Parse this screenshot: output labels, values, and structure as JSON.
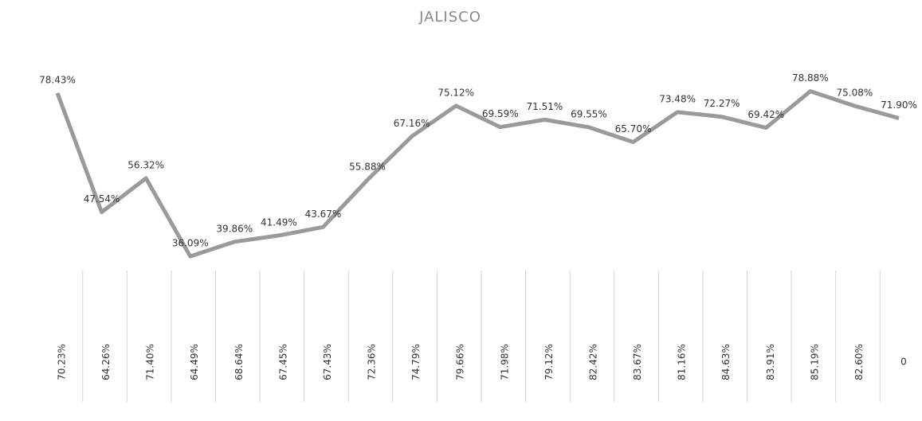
{
  "chart_data": {
    "type": "line",
    "title": "JALISCO",
    "categories": [
      null,
      null,
      null,
      null,
      null,
      null,
      null,
      null,
      null,
      null,
      null,
      null,
      null,
      null,
      null,
      null,
      null,
      null,
      null,
      null
    ],
    "ylim": [
      0,
      85
    ],
    "series": [
      {
        "color": "#9a9a9a",
        "values": [
          78.43,
          47.54,
          56.32,
          36.09,
          39.86,
          41.49,
          43.67,
          55.88,
          67.16,
          75.12,
          69.59,
          71.51,
          69.55,
          65.7,
          73.48,
          72.27,
          69.42,
          78.88,
          75.08,
          71.9
        ],
        "value_labels": [
          "78.43%",
          "47.54%",
          "56.32%",
          "36.09%",
          "39.86%",
          "41.49%",
          "43.67%",
          "55.88%",
          "67.16%",
          "75.12%",
          "69.59%",
          "71.51%",
          "69.55%",
          "65.70%",
          "73.48%",
          "72.27%",
          "69.42%",
          "78.88%",
          "75.08%",
          "71.90%"
        ]
      }
    ],
    "table_row": {
      "values": [
        70.23,
        64.26,
        71.4,
        64.49,
        68.64,
        67.45,
        67.43,
        72.36,
        74.79,
        79.66,
        71.98,
        79.12,
        82.42,
        83.67,
        81.16,
        84.63,
        83.91,
        85.19,
        82.6,
        0
      ],
      "value_labels": [
        "70.23%",
        "64.26%",
        "71.40%",
        "64.49%",
        "68.64%",
        "67.45%",
        "67.43%",
        "72.36%",
        "74.79%",
        "79.66%",
        "71.98%",
        "79.12%",
        "82.42%",
        "83.67%",
        "81.16%",
        "84.63%",
        "83.91%",
        "85.19%",
        "82.60%",
        "0"
      ]
    }
  }
}
